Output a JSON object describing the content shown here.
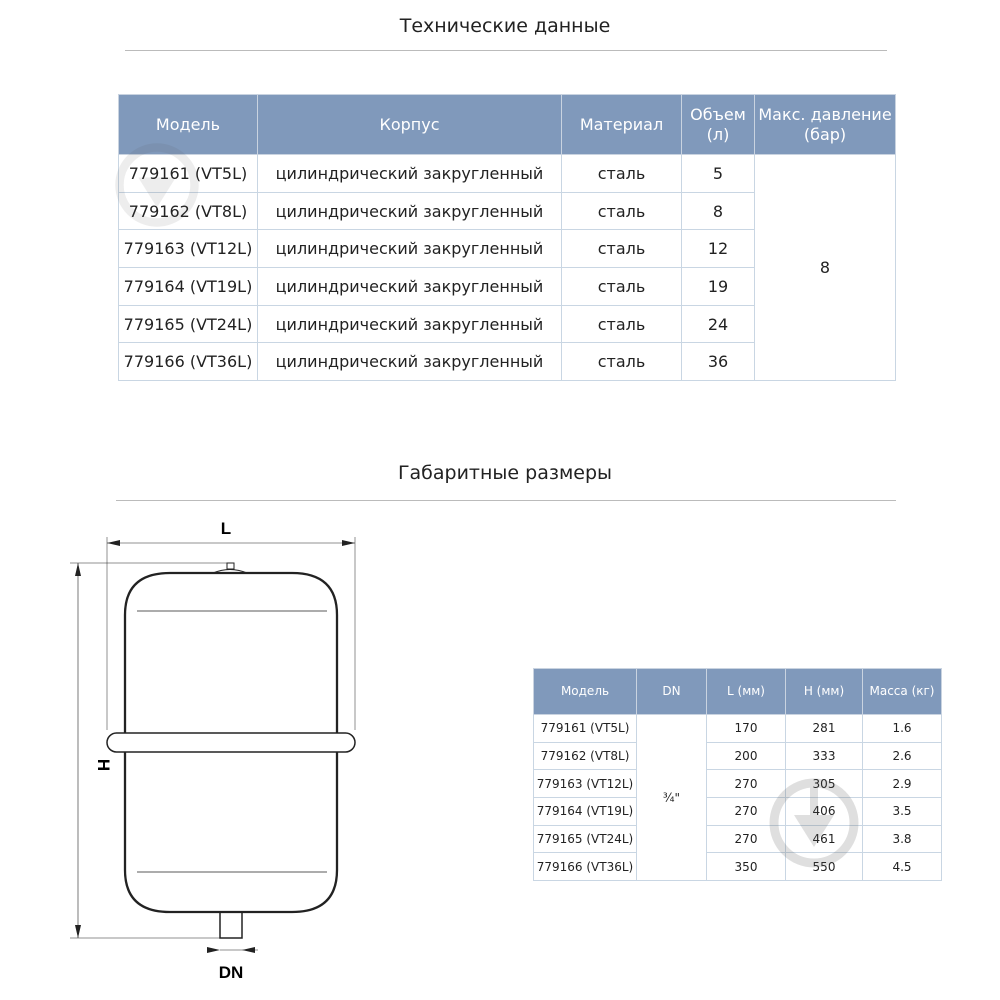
{
  "spec": {
    "title": "Технические данные",
    "headers": [
      "Модель",
      "Корпус",
      "Материал",
      "Объем (л)",
      "Макс. давление (бар)"
    ],
    "rows": [
      [
        "779161 (VT5L)",
        "цилиндрический закругленный",
        "сталь",
        "5"
      ],
      [
        "779162 (VT8L)",
        "цилиндрический закругленный",
        "сталь",
        "8"
      ],
      [
        "779163 (VT12L)",
        "цилиндрический закругленный",
        "сталь",
        "12"
      ],
      [
        "779164 (VT19L)",
        "цилиндрический закругленный",
        "сталь",
        "19"
      ],
      [
        "779165 (VT24L)",
        "цилиндрический закругленный",
        "сталь",
        "24"
      ],
      [
        "779166 (VT36L)",
        "цилиндрический закругленный",
        "сталь",
        "36"
      ]
    ],
    "pressure": "8"
  },
  "dims": {
    "title": "Габаритные размеры",
    "headers": [
      "Модель",
      "DN",
      "L (мм)",
      "H (мм)",
      "Масса (кг)"
    ],
    "dn": "¾\"",
    "rows": [
      [
        "779161 (VT5L)",
        "170",
        "281",
        "1.6"
      ],
      [
        "779162 (VT8L)",
        "200",
        "333",
        "2.6"
      ],
      [
        "779163 (VT12L)",
        "270",
        "305",
        "2.9"
      ],
      [
        "779164 (VT19L)",
        "270",
        "406",
        "3.5"
      ],
      [
        "779165 (VT24L)",
        "270",
        "461",
        "3.8"
      ],
      [
        "779166 (VT36L)",
        "350",
        "550",
        "4.5"
      ]
    ]
  },
  "drawing": {
    "label_l": "L",
    "label_h": "H",
    "label_dn": "DN"
  },
  "colors": {
    "header": "#8099bb"
  }
}
